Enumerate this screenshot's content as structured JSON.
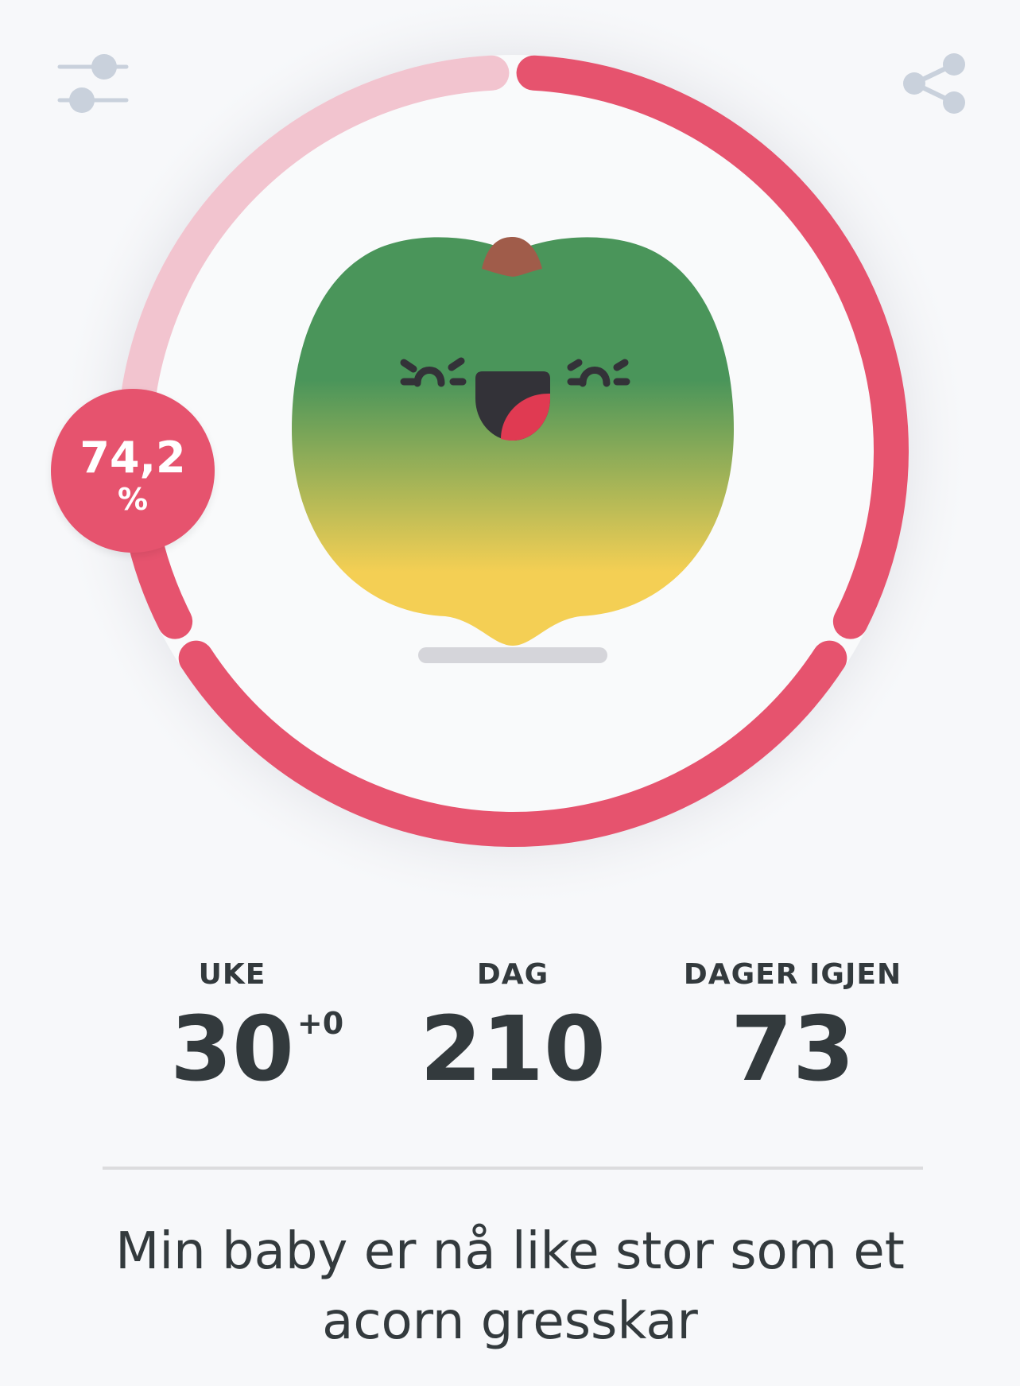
{
  "toolbar": {
    "left_icon": "sliders-icon",
    "right_icon": "share-icon"
  },
  "progress": {
    "percent": 74.2,
    "label": "74,2",
    "unit": "%",
    "active_color": "#e6536e",
    "remaining_color": "#f2c4cf"
  },
  "fruit": {
    "name": "acorn gresskar",
    "colors": [
      "#4a955a",
      "#f4cf54"
    ]
  },
  "stats": [
    {
      "label": "UKE",
      "value": "30",
      "sup": "+0"
    },
    {
      "label": "DAG",
      "value": "210"
    },
    {
      "label": "DAGER IGJEN",
      "value": "73"
    }
  ],
  "caption": "Min baby er nå like stor som et acorn gresskar"
}
